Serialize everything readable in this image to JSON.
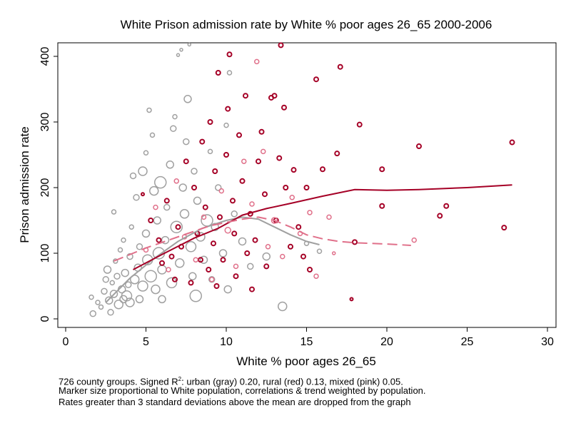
{
  "chart_data": {
    "type": "scatter",
    "title": "White Prison admission rate by White % poor ages 26_65 2000-2006",
    "xlabel": "White % poor ages 26_65",
    "ylabel": "Prison admission rate",
    "xlim": [
      0,
      30
    ],
    "ylim": [
      0,
      420
    ],
    "xticks": [
      0,
      5,
      10,
      15,
      20,
      25,
      30
    ],
    "yticks": [
      0,
      100,
      200,
      300,
      400
    ],
    "grid": false,
    "legend": "none",
    "colors": {
      "urban": "#a0a0a0",
      "rural": "#a50026",
      "mixed": "#e0708a"
    },
    "series": [
      {
        "name": "urban (gray)",
        "color_key": "urban",
        "points": [
          [
            1.6,
            33,
            3
          ],
          [
            1.7,
            8,
            4
          ],
          [
            2.0,
            25,
            3
          ],
          [
            2.2,
            18,
            3
          ],
          [
            2.4,
            42,
            4
          ],
          [
            2.5,
            60,
            4
          ],
          [
            2.6,
            75,
            5
          ],
          [
            2.7,
            28,
            5
          ],
          [
            2.8,
            10,
            4
          ],
          [
            2.9,
            55,
            3
          ],
          [
            3.0,
            163,
            3
          ],
          [
            3.0,
            38,
            5
          ],
          [
            3.1,
            88,
            3
          ],
          [
            3.2,
            65,
            4
          ],
          [
            3.3,
            22,
            6
          ],
          [
            3.4,
            105,
            3
          ],
          [
            3.5,
            45,
            5
          ],
          [
            3.6,
            30,
            5
          ],
          [
            3.6,
            120,
            3
          ],
          [
            3.7,
            70,
            5
          ],
          [
            3.8,
            35,
            7
          ],
          [
            3.9,
            52,
            4
          ],
          [
            4.0,
            95,
            4
          ],
          [
            4.0,
            25,
            6
          ],
          [
            4.1,
            140,
            3
          ],
          [
            4.2,
            218,
            4
          ],
          [
            4.3,
            60,
            6
          ],
          [
            4.4,
            185,
            4
          ],
          [
            4.5,
            78,
            5
          ],
          [
            4.6,
            30,
            5
          ],
          [
            4.6,
            110,
            4
          ],
          [
            4.8,
            225,
            6
          ],
          [
            4.8,
            50,
            7
          ],
          [
            5.0,
            253,
            3
          ],
          [
            5.0,
            130,
            5
          ],
          [
            5.1,
            90,
            7
          ],
          [
            5.2,
            318,
            3
          ],
          [
            5.3,
            65,
            8
          ],
          [
            5.4,
            280,
            3
          ],
          [
            5.5,
            195,
            6
          ],
          [
            5.6,
            45,
            6
          ],
          [
            5.7,
            150,
            5
          ],
          [
            5.8,
            100,
            8
          ],
          [
            5.9,
            208,
            8
          ],
          [
            6.0,
            30,
            5
          ],
          [
            6.0,
            75,
            6
          ],
          [
            6.2,
            120,
            5
          ],
          [
            6.3,
            170,
            4
          ],
          [
            6.5,
            235,
            5
          ],
          [
            6.6,
            55,
            7
          ],
          [
            6.7,
            290,
            4
          ],
          [
            6.8,
            308,
            3
          ],
          [
            6.9,
            140,
            8
          ],
          [
            7.0,
            402,
            2
          ],
          [
            7.1,
            85,
            6
          ],
          [
            7.2,
            410,
            2
          ],
          [
            7.3,
            200,
            5
          ],
          [
            7.4,
            160,
            6
          ],
          [
            7.5,
            270,
            4
          ],
          [
            7.6,
            335,
            5
          ],
          [
            7.7,
            418,
            2
          ],
          [
            7.8,
            110,
            7
          ],
          [
            7.9,
            65,
            5
          ],
          [
            8.0,
            225,
            4
          ],
          [
            8.1,
            35,
            8
          ],
          [
            8.2,
            180,
            5
          ],
          [
            8.4,
            125,
            6
          ],
          [
            8.6,
            90,
            5
          ],
          [
            8.8,
            150,
            8
          ],
          [
            9.0,
            255,
            3
          ],
          [
            9.1,
            60,
            4
          ],
          [
            9.3,
            140,
            5
          ],
          [
            9.5,
            200,
            4
          ],
          [
            9.8,
            100,
            5
          ],
          [
            10.0,
            295,
            3
          ],
          [
            10.1,
            45,
            5
          ],
          [
            10.2,
            375,
            3
          ],
          [
            10.5,
            160,
            4
          ],
          [
            11.0,
            118,
            5
          ],
          [
            11.5,
            80,
            4
          ],
          [
            12.5,
            95,
            5
          ],
          [
            13.5,
            19,
            6
          ],
          [
            15.0,
            115,
            3
          ],
          [
            15.8,
            103,
            3
          ]
        ]
      },
      {
        "name": "rural (red)",
        "color_key": "rural",
        "points": [
          [
            4.8,
            190,
            2
          ],
          [
            5.3,
            150,
            3
          ],
          [
            5.8,
            120,
            3
          ],
          [
            6.0,
            85,
            3
          ],
          [
            6.3,
            180,
            3
          ],
          [
            6.6,
            95,
            3
          ],
          [
            6.8,
            60,
            3
          ],
          [
            7.0,
            140,
            3
          ],
          [
            7.2,
            110,
            3
          ],
          [
            7.5,
            240,
            3
          ],
          [
            7.8,
            55,
            3
          ],
          [
            8.0,
            200,
            3
          ],
          [
            8.2,
            130,
            3
          ],
          [
            8.4,
            90,
            3
          ],
          [
            8.5,
            270,
            3
          ],
          [
            8.7,
            170,
            3
          ],
          [
            8.9,
            75,
            3
          ],
          [
            9.0,
            300,
            3
          ],
          [
            9.2,
            115,
            3
          ],
          [
            9.3,
            225,
            3
          ],
          [
            9.4,
            50,
            3
          ],
          [
            9.5,
            375,
            3
          ],
          [
            9.6,
            155,
            3
          ],
          [
            9.8,
            90,
            3
          ],
          [
            10.0,
            250,
            3
          ],
          [
            10.1,
            320,
            3
          ],
          [
            10.2,
            403,
            3
          ],
          [
            10.4,
            180,
            3
          ],
          [
            10.5,
            130,
            3
          ],
          [
            10.6,
            65,
            3
          ],
          [
            10.8,
            280,
            3
          ],
          [
            11.0,
            210,
            3
          ],
          [
            11.2,
            340,
            3
          ],
          [
            11.3,
            100,
            3
          ],
          [
            11.5,
            160,
            3
          ],
          [
            11.6,
            45,
            3
          ],
          [
            11.8,
            120,
            3
          ],
          [
            12.0,
            240,
            3
          ],
          [
            12.2,
            285,
            3
          ],
          [
            12.4,
            190,
            3
          ],
          [
            12.5,
            80,
            3
          ],
          [
            12.8,
            337,
            3
          ],
          [
            13.0,
            340,
            3
          ],
          [
            13.1,
            150,
            3
          ],
          [
            13.3,
            245,
            3
          ],
          [
            13.4,
            417,
            3
          ],
          [
            13.6,
            322,
            3
          ],
          [
            13.7,
            200,
            3
          ],
          [
            14.0,
            110,
            3
          ],
          [
            14.2,
            227,
            3
          ],
          [
            14.5,
            140,
            3
          ],
          [
            14.8,
            95,
            3
          ],
          [
            15.0,
            200,
            3
          ],
          [
            15.2,
            75,
            3
          ],
          [
            15.6,
            365,
            3
          ],
          [
            16.0,
            228,
            3
          ],
          [
            16.9,
            252,
            3
          ],
          [
            17.1,
            384,
            3
          ],
          [
            17.8,
            30,
            2
          ],
          [
            18.0,
            117,
            3
          ],
          [
            18.3,
            296,
            3
          ],
          [
            19.7,
            228,
            3
          ],
          [
            19.7,
            172,
            3
          ],
          [
            22.0,
            263,
            3
          ],
          [
            23.3,
            157,
            3
          ],
          [
            23.7,
            172,
            3
          ],
          [
            27.3,
            139,
            3
          ],
          [
            27.8,
            269,
            3
          ]
        ]
      },
      {
        "name": "mixed (pink)",
        "color_key": "mixed",
        "points": [
          [
            5.0,
            105,
            3
          ],
          [
            5.6,
            170,
            3
          ],
          [
            6.4,
            75,
            3
          ],
          [
            6.9,
            210,
            3
          ],
          [
            7.4,
            125,
            3
          ],
          [
            8.1,
            90,
            3
          ],
          [
            8.6,
            155,
            3
          ],
          [
            9.1,
            60,
            3
          ],
          [
            9.7,
            195,
            3
          ],
          [
            10.1,
            135,
            4
          ],
          [
            10.6,
            80,
            3
          ],
          [
            11.1,
            240,
            3
          ],
          [
            11.6,
            175,
            3
          ],
          [
            11.9,
            392,
            3
          ],
          [
            12.3,
            255,
            3
          ],
          [
            12.6,
            110,
            3
          ],
          [
            13.0,
            150,
            4
          ],
          [
            13.5,
            95,
            3
          ],
          [
            14.1,
            185,
            3
          ],
          [
            14.6,
            130,
            3
          ],
          [
            15.2,
            162,
            3
          ],
          [
            15.6,
            65,
            3
          ],
          [
            16.4,
            155,
            3
          ],
          [
            16.7,
            100,
            2
          ],
          [
            21.7,
            120,
            3
          ]
        ]
      }
    ],
    "trend_lines": [
      {
        "name": "urban trend",
        "color_key": "urban",
        "style": "solid",
        "points": [
          [
            2.5,
            25
          ],
          [
            4,
            62
          ],
          [
            5.5,
            92
          ],
          [
            7,
            118
          ],
          [
            8.5,
            138
          ],
          [
            10,
            150
          ],
          [
            11,
            155
          ],
          [
            12,
            152
          ],
          [
            13,
            140
          ],
          [
            14,
            128
          ],
          [
            15,
            118
          ],
          [
            15.8,
            113
          ]
        ]
      },
      {
        "name": "rural trend",
        "color_key": "rural",
        "style": "solid",
        "points": [
          [
            4.2,
            75
          ],
          [
            6,
            98
          ],
          [
            8,
            123
          ],
          [
            9.5,
            138
          ],
          [
            11,
            158
          ],
          [
            12.5,
            168
          ],
          [
            14,
            176
          ],
          [
            16,
            187
          ],
          [
            18,
            197
          ],
          [
            20,
            196
          ],
          [
            22,
            197
          ],
          [
            25,
            200
          ],
          [
            27.8,
            204
          ]
        ]
      },
      {
        "name": "mixed trend",
        "color_key": "mixed",
        "style": "dashed",
        "points": [
          [
            3,
            88
          ],
          [
            5,
            108
          ],
          [
            7,
            125
          ],
          [
            9,
            142
          ],
          [
            11,
            152
          ],
          [
            12,
            155
          ],
          [
            13,
            150
          ],
          [
            14,
            140
          ],
          [
            15,
            128
          ],
          [
            16,
            122
          ],
          [
            17,
            118
          ],
          [
            18,
            116
          ],
          [
            20,
            114
          ],
          [
            21.5,
            112
          ]
        ]
      }
    ]
  },
  "notes": {
    "line1_pre": "726 county groups. Signed R",
    "line1_sup": "2",
    "line1_post": ": urban (gray) 0.20, rural (red) 0.13, mixed (pink) 0.05.",
    "line2": "Marker size proportional to White population, correlations & trend weighted by population.",
    "line3": "Rates greater than 3 standard deviations above the mean are dropped from the graph"
  }
}
